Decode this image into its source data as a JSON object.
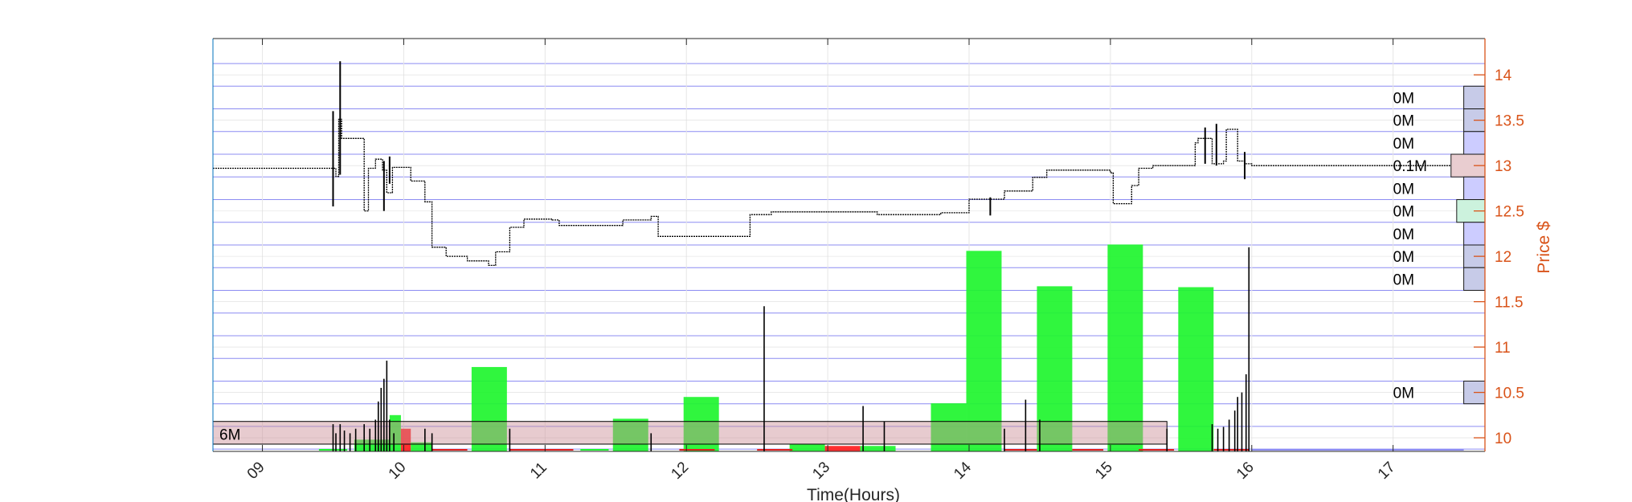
{
  "chart_data": {
    "type": "bar",
    "xlabel": "Time(Hours)",
    "ylabel": "Price $",
    "x_ticks": [
      "09",
      "10",
      "11",
      "12",
      "13",
      "14",
      "15",
      "16",
      "17"
    ],
    "x_tick_values": [
      9,
      10,
      11,
      12,
      13,
      14,
      15,
      16,
      17
    ],
    "xlim": [
      8.65,
      17.65
    ],
    "ylim": [
      9.85,
      14.4
    ],
    "y_ticks": [
      "10",
      "10.5",
      "11",
      "11.5",
      "12",
      "12.5",
      "13",
      "13.5",
      "14"
    ],
    "y_tick_values": [
      10,
      10.5,
      11,
      11.5,
      12,
      12.5,
      13,
      13.5,
      14
    ],
    "grid": true,
    "price_levels": [
      9.875,
      10.125,
      10.375,
      10.625,
      10.875,
      11.125,
      11.375,
      11.625,
      11.875,
      12.125,
      12.375,
      12.625,
      12.875,
      13.125,
      13.375,
      13.625,
      13.875,
      14.125
    ],
    "volume_bars": [
      {
        "t_start": 9.65,
        "t_end": 9.9,
        "top": 9.98,
        "color": "green"
      },
      {
        "t_start": 9.9,
        "t_end": 9.98,
        "top": 10.25,
        "color": "green"
      },
      {
        "t_start": 9.98,
        "t_end": 10.05,
        "top": 10.1,
        "color": "red"
      },
      {
        "t_start": 10.05,
        "t_end": 10.2,
        "top": 9.95,
        "color": "green"
      },
      {
        "t_start": 10.48,
        "t_end": 10.73,
        "top": 10.78,
        "color": "green"
      },
      {
        "t_start": 11.48,
        "t_end": 11.73,
        "top": 10.21,
        "color": "green"
      },
      {
        "t_start": 11.98,
        "t_end": 12.23,
        "top": 10.45,
        "color": "green"
      },
      {
        "t_start": 12.73,
        "t_end": 12.98,
        "top": 9.93,
        "color": "green"
      },
      {
        "t_start": 12.98,
        "t_end": 13.23,
        "top": 9.91,
        "color": "red"
      },
      {
        "t_start": 13.23,
        "t_end": 13.48,
        "top": 9.91,
        "color": "green"
      },
      {
        "t_start": 13.73,
        "t_end": 13.98,
        "top": 10.38,
        "color": "green"
      },
      {
        "t_start": 13.98,
        "t_end": 14.23,
        "top": 12.06,
        "color": "green"
      },
      {
        "t_start": 14.48,
        "t_end": 14.73,
        "top": 11.67,
        "color": "green"
      },
      {
        "t_start": 14.98,
        "t_end": 15.23,
        "top": 12.13,
        "color": "green"
      },
      {
        "t_start": 15.48,
        "t_end": 15.73,
        "top": 11.66,
        "color": "green"
      }
    ],
    "price_series": [
      {
        "t": 8.65,
        "p": 12.97
      },
      {
        "t": 9.5,
        "p": 12.97
      },
      {
        "t": 9.52,
        "p": 12.88
      },
      {
        "t": 9.54,
        "p": 13.51
      },
      {
        "t": 9.56,
        "p": 13.3
      },
      {
        "t": 9.6,
        "p": 13.3
      },
      {
        "t": 9.72,
        "p": 12.5
      },
      {
        "t": 9.75,
        "p": 12.97
      },
      {
        "t": 9.8,
        "p": 13.07
      },
      {
        "t": 9.85,
        "p": 12.95
      },
      {
        "t": 9.88,
        "p": 12.7
      },
      {
        "t": 9.92,
        "p": 12.98
      },
      {
        "t": 10.05,
        "p": 12.83
      },
      {
        "t": 10.15,
        "p": 12.6
      },
      {
        "t": 10.2,
        "p": 12.1
      },
      {
        "t": 10.3,
        "p": 12.0
      },
      {
        "t": 10.45,
        "p": 11.95
      },
      {
        "t": 10.6,
        "p": 11.9
      },
      {
        "t": 10.65,
        "p": 12.05
      },
      {
        "t": 10.75,
        "p": 12.32
      },
      {
        "t": 10.85,
        "p": 12.41
      },
      {
        "t": 11.05,
        "p": 12.4
      },
      {
        "t": 11.1,
        "p": 12.34
      },
      {
        "t": 11.5,
        "p": 12.34
      },
      {
        "t": 11.55,
        "p": 12.4
      },
      {
        "t": 11.75,
        "p": 12.44
      },
      {
        "t": 11.8,
        "p": 12.22
      },
      {
        "t": 12.4,
        "p": 12.22
      },
      {
        "t": 12.45,
        "p": 12.46
      },
      {
        "t": 12.6,
        "p": 12.49
      },
      {
        "t": 13.3,
        "p": 12.49
      },
      {
        "t": 13.35,
        "p": 12.46
      },
      {
        "t": 13.6,
        "p": 12.46
      },
      {
        "t": 13.8,
        "p": 12.48
      },
      {
        "t": 14.0,
        "p": 12.63
      },
      {
        "t": 14.2,
        "p": 12.63
      },
      {
        "t": 14.25,
        "p": 12.72
      },
      {
        "t": 14.4,
        "p": 12.72
      },
      {
        "t": 14.45,
        "p": 12.87
      },
      {
        "t": 14.55,
        "p": 12.95
      },
      {
        "t": 14.85,
        "p": 12.95
      },
      {
        "t": 15.0,
        "p": 12.92
      },
      {
        "t": 15.02,
        "p": 12.58
      },
      {
        "t": 15.1,
        "p": 12.58
      },
      {
        "t": 15.15,
        "p": 12.78
      },
      {
        "t": 15.2,
        "p": 12.97
      },
      {
        "t": 15.3,
        "p": 13.0
      },
      {
        "t": 15.55,
        "p": 13.0
      },
      {
        "t": 15.6,
        "p": 13.25
      },
      {
        "t": 15.62,
        "p": 13.3
      },
      {
        "t": 15.7,
        "p": 13.3
      },
      {
        "t": 15.72,
        "p": 13.02
      },
      {
        "t": 15.8,
        "p": 13.05
      },
      {
        "t": 15.82,
        "p": 13.4
      },
      {
        "t": 15.86,
        "p": 13.4
      },
      {
        "t": 15.9,
        "p": 13.05
      },
      {
        "t": 15.95,
        "p": 13.02
      },
      {
        "t": 16.0,
        "p": 13.0
      },
      {
        "t": 17.5,
        "p": 13.0
      }
    ],
    "price_spikes": [
      {
        "t": 9.5,
        "low": 12.55,
        "high": 13.6
      },
      {
        "t": 9.55,
        "low": 12.9,
        "high": 14.15
      },
      {
        "t": 9.86,
        "low": 12.5,
        "high": 13.05
      },
      {
        "t": 9.9,
        "low": 12.8,
        "high": 13.1
      },
      {
        "t": 14.15,
        "low": 12.45,
        "high": 12.65
      },
      {
        "t": 15.67,
        "low": 13.02,
        "high": 13.42
      },
      {
        "t": 15.75,
        "low": 13.0,
        "high": 13.46
      },
      {
        "t": 15.95,
        "low": 12.85,
        "high": 13.15
      }
    ],
    "trade_ticks": [
      {
        "t": 9.5,
        "h": 10.15
      },
      {
        "t": 9.52,
        "h": 10.05
      },
      {
        "t": 9.55,
        "h": 10.15
      },
      {
        "t": 9.58,
        "h": 10.08
      },
      {
        "t": 9.62,
        "h": 10.05
      },
      {
        "t": 9.66,
        "h": 10.1
      },
      {
        "t": 9.72,
        "h": 10.15
      },
      {
        "t": 9.76,
        "h": 10.1
      },
      {
        "t": 9.8,
        "h": 10.2
      },
      {
        "t": 9.82,
        "h": 10.4
      },
      {
        "t": 9.84,
        "h": 10.55
      },
      {
        "t": 9.86,
        "h": 10.65
      },
      {
        "t": 9.88,
        "h": 10.85
      },
      {
        "t": 9.9,
        "h": 10.2
      },
      {
        "t": 9.93,
        "h": 10.05
      },
      {
        "t": 10.15,
        "h": 10.1
      },
      {
        "t": 10.2,
        "h": 10.05
      },
      {
        "t": 10.75,
        "h": 10.1
      },
      {
        "t": 11.75,
        "h": 10.05
      },
      {
        "t": 12.55,
        "h": 11.45
      },
      {
        "t": 13.25,
        "h": 10.35
      },
      {
        "t": 13.4,
        "h": 10.18
      },
      {
        "t": 14.25,
        "h": 10.1
      },
      {
        "t": 14.4,
        "h": 10.42
      },
      {
        "t": 14.5,
        "h": 10.2
      },
      {
        "t": 15.4,
        "h": 10.1
      },
      {
        "t": 15.72,
        "h": 10.15
      },
      {
        "t": 15.76,
        "h": 10.1
      },
      {
        "t": 15.8,
        "h": 10.12
      },
      {
        "t": 15.84,
        "h": 10.2
      },
      {
        "t": 15.88,
        "h": 10.3
      },
      {
        "t": 15.9,
        "h": 10.45
      },
      {
        "t": 15.93,
        "h": 10.5
      },
      {
        "t": 15.96,
        "h": 10.7
      },
      {
        "t": 15.98,
        "h": 12.1
      }
    ],
    "volume_profile": [
      {
        "level": 13.75,
        "label": "0M",
        "color": "#c7cbe8",
        "width": 0.15
      },
      {
        "level": 13.5,
        "label": "0M",
        "color": "#c7cbe8",
        "width": 0.15
      },
      {
        "level": 13.25,
        "label": "0M",
        "color": "#ccccff",
        "width": 0.15
      },
      {
        "level": 13.0,
        "label": "0.1M",
        "color": "#e9cdd0",
        "width": 0.24
      },
      {
        "level": 12.75,
        "label": "0M",
        "color": "#ccccff",
        "width": 0.15
      },
      {
        "level": 12.5,
        "label": "0M",
        "color": "#ccf2dd",
        "width": 0.2
      },
      {
        "level": 12.25,
        "label": "0M",
        "color": "#ccccff",
        "width": 0.15
      },
      {
        "level": 12.0,
        "label": "0M",
        "color": "#c7cbe8",
        "width": 0.15
      },
      {
        "level": 11.75,
        "label": "0M",
        "color": "#c7cbe8",
        "width": 0.15
      },
      {
        "level": 10.5,
        "label": "0M",
        "color": "#c7cbe8",
        "width": 0.15
      }
    ],
    "volume_total": {
      "label": "6M",
      "level": 10.03,
      "t_start": 8.65,
      "t_end": 15.4
    }
  }
}
